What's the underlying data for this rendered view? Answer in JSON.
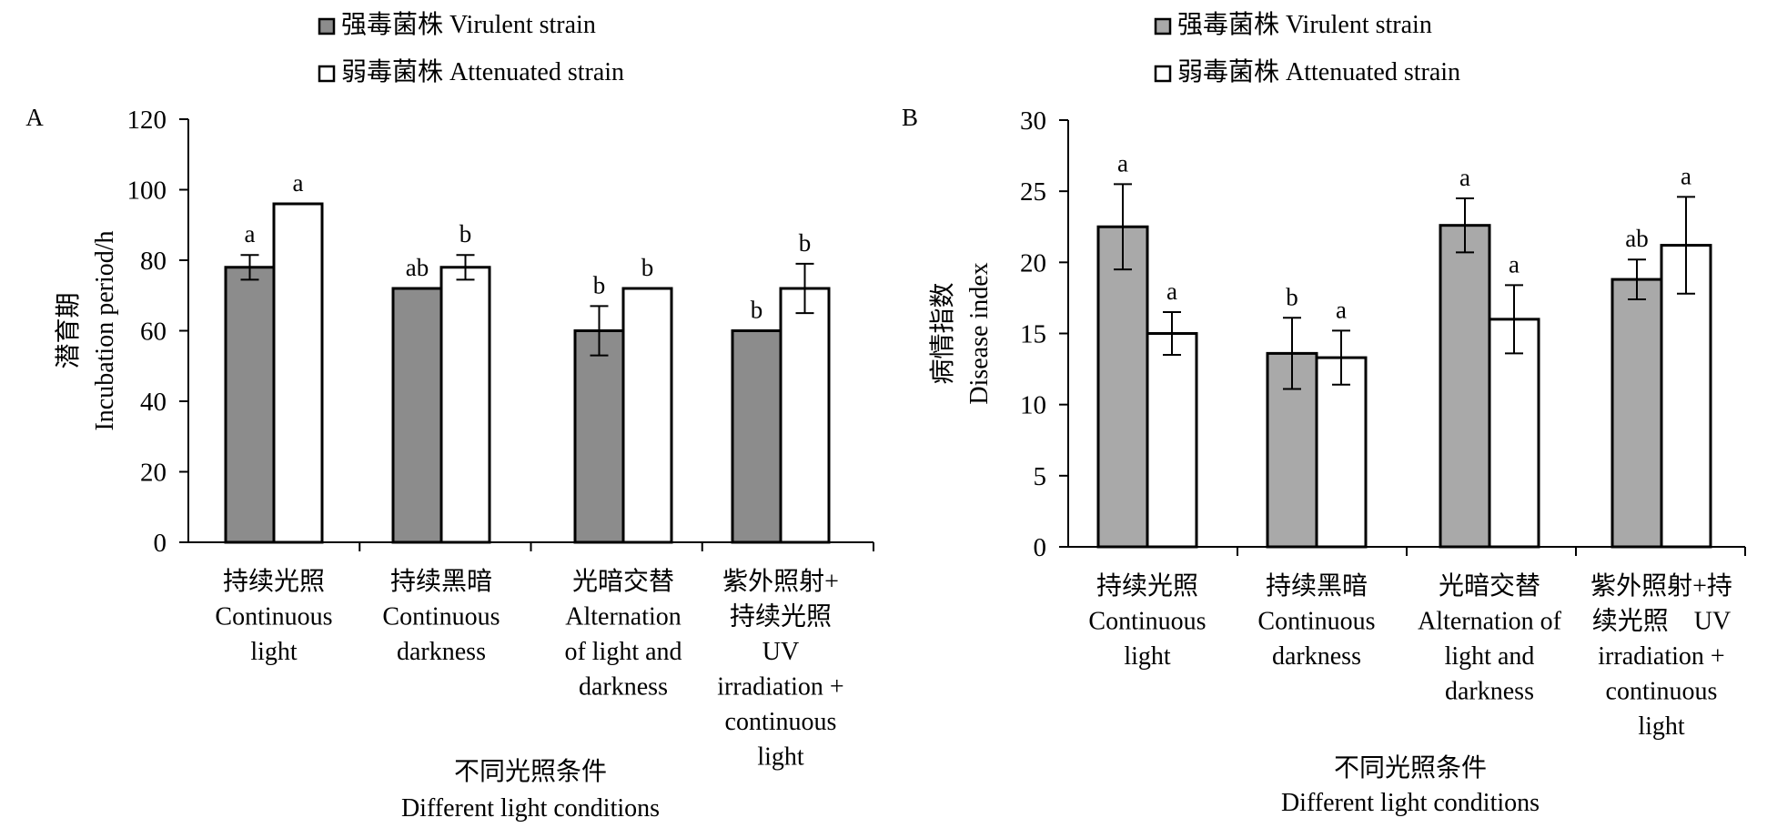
{
  "colors": {
    "virulent_A": "#8c8c8c",
    "virulent_B": "#a9a9a9",
    "attenuated": "#ffffff",
    "axis": "#000000"
  },
  "chart_data": [
    {
      "panel": "A",
      "type": "bar",
      "legend": [
        "强毒菌株 Virulent strain",
        "弱毒菌株 Attenuated strain"
      ],
      "legend_position": "top",
      "ylabel_cn": "潜育期",
      "ylabel_en": "Incubation period/h",
      "xlabel_cn": "不同光照条件",
      "xlabel_en": "Different light conditions",
      "ylim": [
        0,
        120
      ],
      "yticks": [
        0,
        20,
        40,
        60,
        80,
        100,
        120
      ],
      "grid": false,
      "categories": [
        [
          "持续光照",
          "Continuous",
          "light"
        ],
        [
          "持续黑暗",
          "Continuous",
          "darkness"
        ],
        [
          "光暗交替",
          "Alternation",
          "of light and",
          "darkness"
        ],
        [
          "紫外照射+",
          "持续光照",
          "UV",
          "irradiation +",
          "continuous",
          "light"
        ]
      ],
      "series": [
        {
          "name": "强毒菌株 Virulent strain",
          "values": [
            78,
            72,
            60,
            60
          ],
          "errors": [
            3.5,
            0,
            7,
            0
          ],
          "letters": [
            "a",
            "ab",
            "b",
            "b"
          ]
        },
        {
          "name": "弱毒菌株 Attenuated strain",
          "values": [
            96,
            78,
            72,
            72
          ],
          "errors": [
            0,
            3.5,
            0,
            7
          ],
          "letters": [
            "a",
            "b",
            "b",
            "b"
          ]
        }
      ]
    },
    {
      "panel": "B",
      "type": "bar",
      "legend": [
        "强毒菌株 Virulent strain",
        "弱毒菌株 Attenuated strain"
      ],
      "legend_position": "top",
      "ylabel_cn": "病情指数",
      "ylabel_en": "Disease index",
      "xlabel_cn": "不同光照条件",
      "xlabel_en": "Different light conditions",
      "ylim": [
        0,
        30
      ],
      "yticks": [
        0,
        5,
        10,
        15,
        20,
        25,
        30
      ],
      "grid": false,
      "categories": [
        [
          "持续光照",
          "Continuous",
          "light"
        ],
        [
          "持续黑暗",
          "Continuous",
          "darkness"
        ],
        [
          "光暗交替",
          "Alternation of",
          "light and",
          "darkness"
        ],
        [
          "紫外照射+持",
          "续光照　UV",
          "irradiation +",
          "continuous",
          "light"
        ]
      ],
      "series": [
        {
          "name": "强毒菌株 Virulent strain",
          "values": [
            22.5,
            13.6,
            22.6,
            18.8
          ],
          "errors": [
            3.0,
            2.5,
            1.9,
            1.4
          ],
          "letters": [
            "a",
            "b",
            "a",
            "ab"
          ]
        },
        {
          "name": "弱毒菌株 Attenuated strain",
          "values": [
            15.0,
            13.3,
            16.0,
            21.2
          ],
          "errors": [
            1.5,
            1.9,
            2.4,
            3.4
          ],
          "letters": [
            "a",
            "a",
            "a",
            "a"
          ]
        }
      ]
    }
  ]
}
